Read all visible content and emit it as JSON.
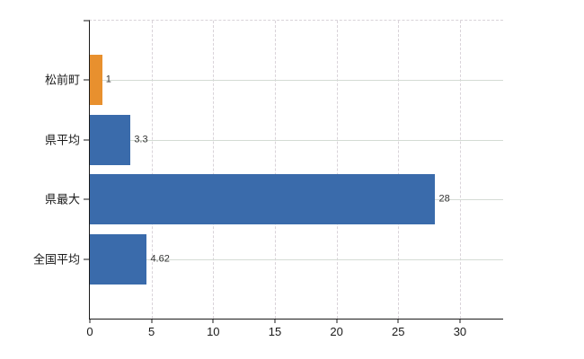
{
  "chart_data": {
    "type": "bar",
    "orientation": "horizontal",
    "title": "",
    "categories": [
      "松前町",
      "県平均",
      "県最大",
      "全国平均"
    ],
    "values": [
      1,
      3.3,
      28,
      4.62
    ],
    "value_labels": [
      "1",
      "3.3",
      "28",
      "4.62"
    ],
    "bar_colors": [
      "#e8902e",
      "#3a6bab",
      "#3a6bab",
      "#3a6bab"
    ],
    "x_ticks": [
      0,
      5,
      10,
      15,
      20,
      25,
      30
    ],
    "xlim": [
      0,
      33.5
    ],
    "grid": true,
    "legend_position": "none",
    "colors": {
      "highlight_bar": "#e8902e",
      "default_bar": "#3a6bab",
      "axis": "#1a1a1a",
      "horizontal_gridline": "#d4dbd4",
      "vertical_gridline": "#d9d3d9",
      "label_text": "#1a1a1a",
      "value_text": "#333333",
      "background": "#ffffff"
    }
  }
}
